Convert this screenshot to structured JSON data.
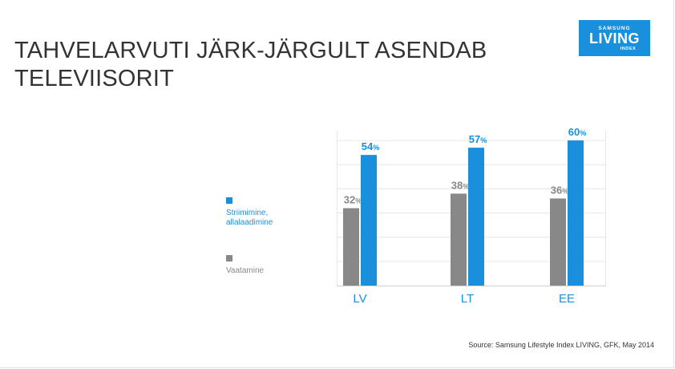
{
  "slide": {
    "title_lines": [
      "TAHVELARVUTI JÄRK-JÄRGULT ASENDAB",
      "TELEVIISORIT"
    ],
    "source": "Source: Samsung Lifestyle Index LIVING, GFK, May 2014"
  },
  "logo": {
    "brand": "SAMSUNG",
    "name": "LIVING",
    "sub": "INDEX",
    "color": "#1a8fdc"
  },
  "legend": {
    "items": [
      {
        "label": "Striimimine, allalaadimine",
        "color": "#1a8fdc"
      },
      {
        "label": "Vaatamine",
        "color": "#888888"
      }
    ]
  },
  "chart_data": {
    "type": "bar",
    "categories": [
      "LV",
      "LT",
      "EE"
    ],
    "series": [
      {
        "name": "Vaatamine",
        "values": [
          32,
          38,
          36
        ],
        "color": "#888888"
      },
      {
        "name": "Striimimine, allalaadimine",
        "values": [
          54,
          57,
          60
        ],
        "color": "#1a8fdc"
      }
    ],
    "unit": "%",
    "ylim": [
      0,
      64
    ],
    "grid": true,
    "legend_position": "left",
    "colors": {
      "category_labels": "#1a8fdc",
      "gridline": "#e6e6e6",
      "axis": "#cfcfcf"
    }
  }
}
